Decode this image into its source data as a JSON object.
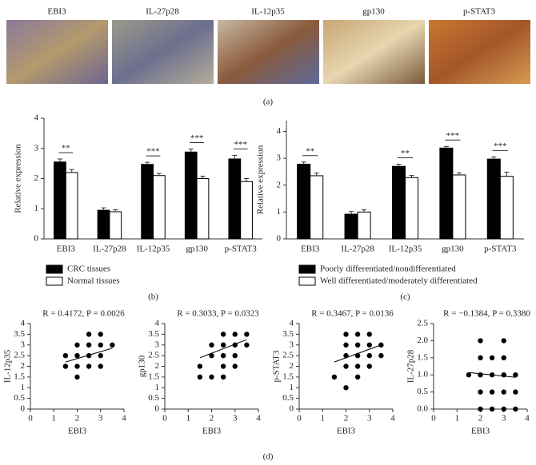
{
  "images": [
    "EBI3",
    "IL-27p28",
    "IL-12p35",
    "gp130",
    "p-STAT3"
  ],
  "panel_labels": {
    "a": "(a)",
    "d": "(d)"
  },
  "chart_data": [
    {
      "type": "bar",
      "panel_label": "(b)",
      "y_label": "Relative expression",
      "categories": [
        "EBI3",
        "IL-27p28",
        "IL-12p35",
        "gp130",
        "p-STAT3"
      ],
      "series": [
        {
          "name": "CRC tissues",
          "color": "#000000",
          "values": [
            2.55,
            0.95,
            2.47,
            2.88,
            2.65
          ],
          "errors": [
            0.1,
            0.08,
            0.07,
            0.1,
            0.12
          ]
        },
        {
          "name": "Normal tissues",
          "color": "#ffffff",
          "values": [
            2.2,
            0.9,
            2.1,
            2.0,
            1.9
          ],
          "errors": [
            0.1,
            0.07,
            0.07,
            0.08,
            0.1
          ]
        }
      ],
      "significance": [
        "**",
        null,
        "***",
        "***",
        "***"
      ],
      "ylim": [
        0,
        4
      ],
      "yticks": [
        0,
        1,
        2,
        3,
        4
      ]
    },
    {
      "type": "bar",
      "panel_label": "(c)",
      "y_label": "Relative expression",
      "categories": [
        "EBI3",
        "IL-27p28",
        "IL-12p35",
        "gp130",
        "p-STAT3"
      ],
      "series": [
        {
          "name": "Poorly differentiated/nondifferentiated",
          "color": "#000000",
          "values": [
            2.78,
            0.92,
            2.7,
            3.38,
            2.97
          ],
          "errors": [
            0.08,
            0.1,
            0.08,
            0.06,
            0.08
          ]
        },
        {
          "name": "Well differentiated/moderately differentiated",
          "color": "#ffffff",
          "values": [
            2.35,
            1.0,
            2.28,
            2.38,
            2.33
          ],
          "errors": [
            0.1,
            0.08,
            0.08,
            0.08,
            0.15
          ]
        }
      ],
      "significance": [
        "**",
        null,
        "**",
        "***",
        "***"
      ],
      "ylim": [
        0,
        4.4
      ],
      "yticks": [
        0,
        1,
        2,
        3,
        4
      ]
    },
    {
      "type": "scatter",
      "annotation": "R = 0.4172, P = 0.0026",
      "x_label": "EBI3",
      "y_label": "IL-12p35",
      "x": [
        2.5,
        3,
        2,
        2.5,
        3,
        3.5,
        1.5,
        2,
        2.5,
        3,
        1.5,
        2,
        2.5,
        3,
        2
      ],
      "y": [
        3.5,
        3.5,
        3,
        3,
        3,
        3,
        2.5,
        2.5,
        2.5,
        2.5,
        2,
        2,
        2,
        2,
        1.5
      ],
      "trend": {
        "x": [
          1.5,
          3.5
        ],
        "y": [
          2.2,
          2.85
        ]
      },
      "xlim": [
        0,
        4
      ],
      "xticks": [
        0,
        1,
        2,
        3,
        4
      ],
      "ylim": [
        0,
        4
      ],
      "yticks": [
        0,
        0.5,
        1,
        1.5,
        2,
        2.5,
        3,
        3.5,
        4
      ]
    },
    {
      "type": "scatter",
      "annotation": "R = 0.3033, P = 0.0323",
      "x_label": "EBI3",
      "y_label": "gp130",
      "x": [
        2.5,
        3,
        3.5,
        2,
        2.5,
        3,
        3.5,
        2,
        2.5,
        3,
        1.5,
        2.5,
        3,
        1.5,
        2,
        2.5
      ],
      "y": [
        3.5,
        3.5,
        3.5,
        3,
        3,
        3,
        3,
        2.5,
        2.5,
        2.5,
        2,
        2,
        2,
        1.5,
        1.5,
        1.5
      ],
      "trend": {
        "x": [
          1.5,
          3.5
        ],
        "y": [
          2.4,
          3.25
        ]
      },
      "xlim": [
        0,
        4
      ],
      "xticks": [
        0,
        1,
        2,
        3,
        4
      ],
      "ylim": [
        0,
        4
      ],
      "yticks": [
        0,
        0.5,
        1,
        1.5,
        2,
        2.5,
        3,
        3.5,
        4
      ]
    },
    {
      "type": "scatter",
      "annotation": "R = 0.3467, P = 0.0136",
      "x_label": "EBI3",
      "y_label": "p-STAT3",
      "x": [
        2,
        2.5,
        3,
        2,
        2.5,
        3,
        3.5,
        2,
        2.5,
        3,
        3.5,
        2,
        2.5,
        3,
        1.5,
        2.5,
        2
      ],
      "y": [
        3.5,
        3.5,
        3.5,
        3,
        3,
        3,
        3,
        2.5,
        2.5,
        2.5,
        2.5,
        2,
        2,
        2,
        1.5,
        1.5,
        1
      ],
      "trend": {
        "x": [
          1.5,
          3.5
        ],
        "y": [
          2.2,
          3.0
        ]
      },
      "xlim": [
        0,
        4
      ],
      "xticks": [
        0,
        1,
        2,
        3,
        4
      ],
      "ylim": [
        0,
        4
      ],
      "yticks": [
        0,
        0.5,
        1,
        1.5,
        2,
        2.5,
        3,
        3.5,
        4
      ]
    },
    {
      "type": "scatter",
      "annotation": "R = −0.1384, P = 0.3380",
      "x_label": "EBI3",
      "y_label": "IL-27p28",
      "x": [
        2,
        3,
        2,
        2.5,
        3,
        1.5,
        2,
        2.5,
        3,
        3.5,
        2,
        2.5,
        3,
        3.5,
        2,
        2.5,
        3,
        3.5
      ],
      "y": [
        2,
        2,
        1.5,
        1.5,
        1.5,
        1,
        1,
        1,
        1,
        1,
        0.5,
        0.5,
        0.5,
        0.5,
        0,
        0,
        0,
        0
      ],
      "trend": {
        "x": [
          1.5,
          3.5
        ],
        "y": [
          1.07,
          0.93
        ]
      },
      "xlim": [
        0,
        4
      ],
      "xticks": [
        0,
        1,
        2,
        3,
        4
      ],
      "ylim": [
        0,
        2.5
      ],
      "yticks": [
        {
          "value": 0,
          "label": "0.0"
        },
        0.5,
        {
          "value": 1,
          "label": "1.0"
        },
        1.5,
        {
          "value": 2,
          "label": "2.0"
        },
        2.5
      ]
    }
  ]
}
